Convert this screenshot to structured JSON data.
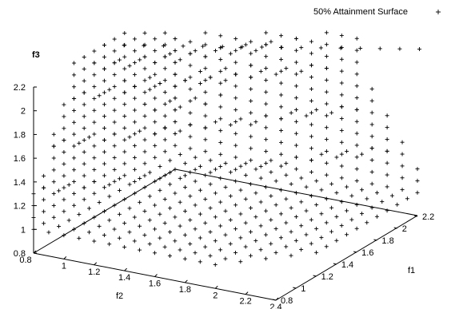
{
  "chart_data": {
    "type": "scatter",
    "title": "",
    "legend": {
      "entries": [
        {
          "label": "50% Attainment Surface",
          "marker": "+"
        }
      ],
      "position": "top-right"
    },
    "series": [
      {
        "name": "50% Attainment Surface",
        "marker": "+",
        "color": "#000000",
        "surface": {
          "grid_step": 0.1,
          "f1_range": [
            0.8,
            2.2
          ],
          "f2_range": [
            0.8,
            2.4
          ],
          "f3_range": [
            1.0,
            2.2
          ],
          "shape": "three stepped attainment planes (f1 = 2.2 back wall, f2 = 0.8 side wall, f3 = 1.0 floor) joined by a diagonal staircase region"
        }
      }
    ],
    "axes": {
      "x": {
        "label": "f1",
        "ticks": [
          "0.8",
          "1",
          "1.2",
          "1.4",
          "1.6",
          "1.8",
          "2",
          "2.2"
        ],
        "range": [
          0.8,
          2.2
        ]
      },
      "y": {
        "label": "f2",
        "ticks": [
          "0.8",
          "1",
          "1.2",
          "1.4",
          "1.6",
          "1.8",
          "2",
          "2.2",
          "2.4"
        ],
        "range": [
          0.8,
          2.4
        ]
      },
      "z": {
        "label": "f3",
        "ticks": [
          "0.8",
          "1",
          "1.2",
          "1.4",
          "1.6",
          "1.8",
          "2",
          "2.2"
        ],
        "range": [
          0.8,
          2.2
        ]
      }
    },
    "grid": false
  }
}
